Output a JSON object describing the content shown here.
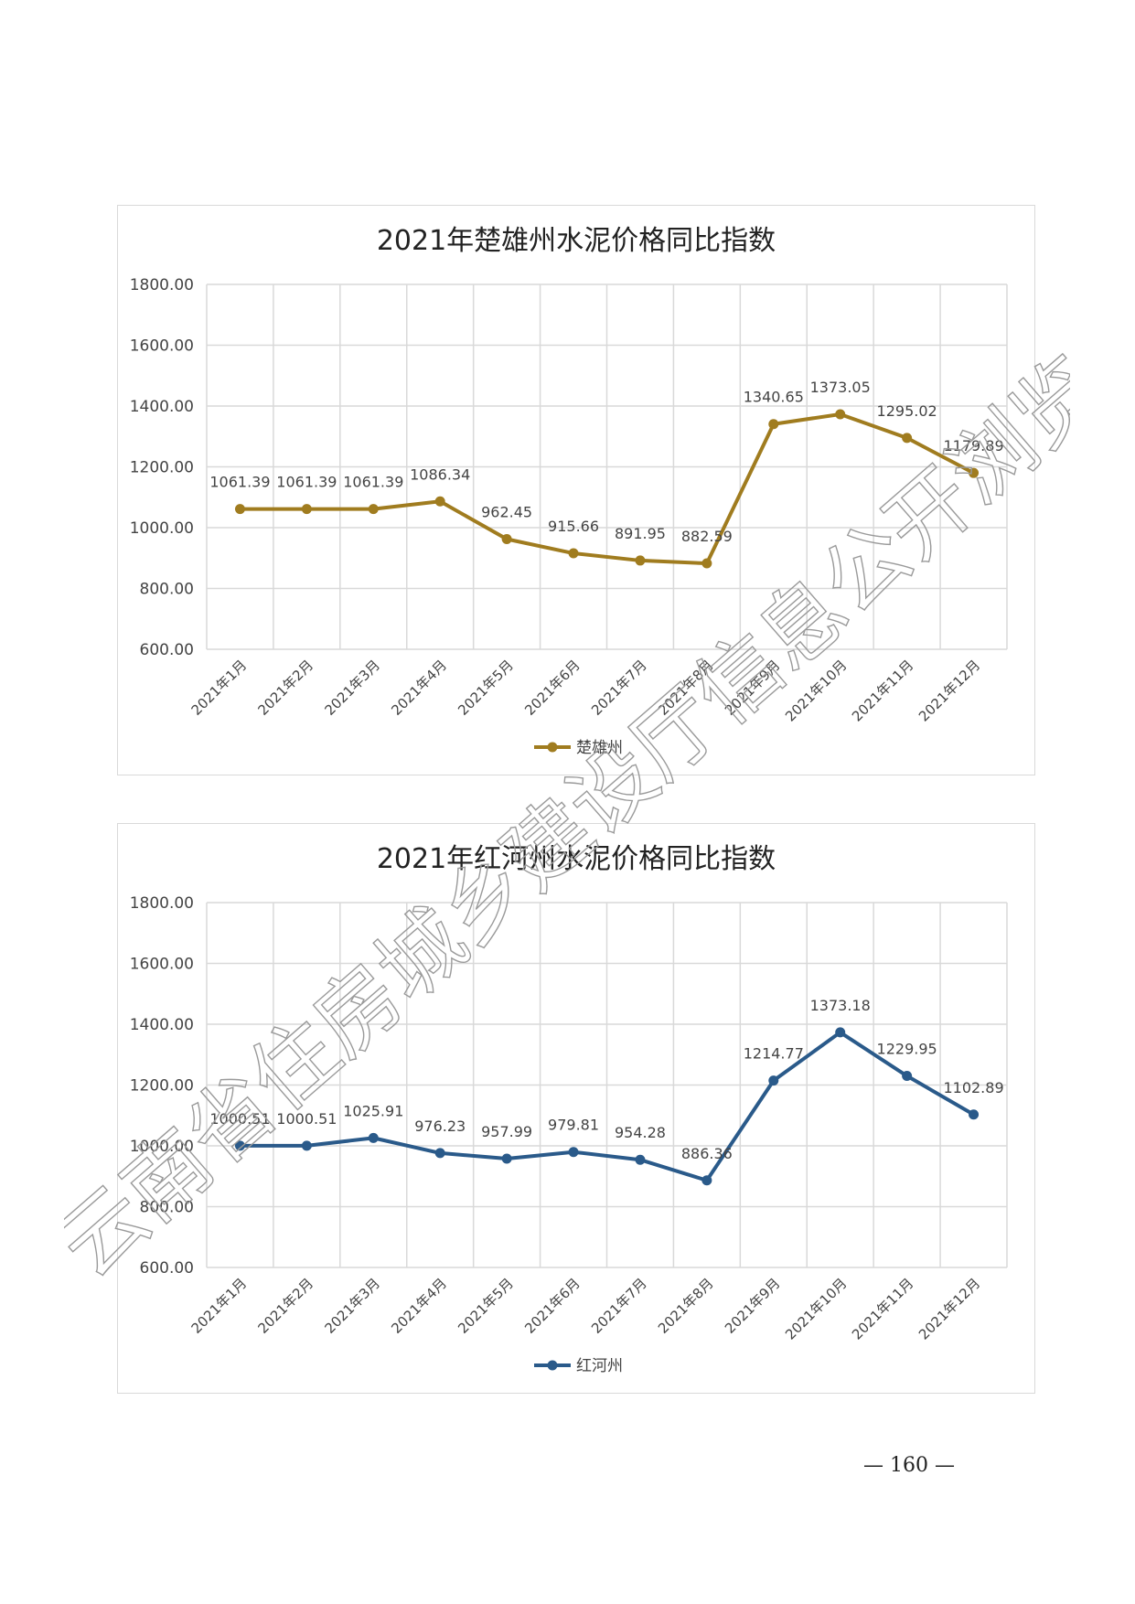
{
  "chart_data": [
    {
      "type": "line",
      "title": "2021年楚雄州水泥价格同比指数",
      "categories": [
        "2021年1月",
        "2021年2月",
        "2021年3月",
        "2021年4月",
        "2021年5月",
        "2021年6月",
        "2021年7月",
        "2021年8月",
        "2021年9月",
        "2021年10月",
        "2021年11月",
        "2021年12月"
      ],
      "series": [
        {
          "name": "楚雄州",
          "color": "#a07c1f",
          "values": [
            1061.39,
            1061.39,
            1061.39,
            1086.34,
            962.45,
            915.66,
            891.95,
            882.59,
            1340.65,
            1373.05,
            1295.02,
            1179.89
          ],
          "value_labels": [
            "1061.39",
            "1061.39",
            "1061.39",
            "1086.34",
            "962.45",
            "915.66",
            "891.95",
            "882.59",
            "1340.65",
            "1373.05",
            "1295.02",
            "1179.89"
          ]
        }
      ],
      "ylim": [
        600,
        1800
      ],
      "yticks": [
        "600.00",
        "800.00",
        "1000.00",
        "1200.00",
        "1400.00",
        "1600.00",
        "1800.00"
      ],
      "grid": true,
      "legend": "bottom"
    },
    {
      "type": "line",
      "title": "2021年红河州水泥价格同比指数",
      "categories": [
        "2021年1月",
        "2021年2月",
        "2021年3月",
        "2021年4月",
        "2021年5月",
        "2021年6月",
        "2021年7月",
        "2021年8月",
        "2021年9月",
        "2021年10月",
        "2021年11月",
        "2021年12月"
      ],
      "series": [
        {
          "name": "红河州",
          "color": "#2a5a8a",
          "values": [
            1000.51,
            1000.51,
            1025.91,
            976.23,
            957.99,
            979.81,
            954.28,
            886.36,
            1214.77,
            1373.18,
            1229.95,
            1102.89
          ],
          "value_labels": [
            "1000.51",
            "1000.51",
            "1025.91",
            "976.23",
            "957.99",
            "979.81",
            "954.28",
            "886.36",
            "1214.77",
            "1373.18",
            "1229.95",
            "1102.89"
          ]
        }
      ],
      "ylim": [
        600,
        1800
      ],
      "yticks": [
        "600.00",
        "800.00",
        "1000.00",
        "1200.00",
        "1400.00",
        "1600.00",
        "1800.00"
      ],
      "grid": true,
      "legend": "bottom"
    }
  ],
  "page": {
    "number": "— 160 —",
    "watermark": "云南省住房城乡建设厅信息公开浏览专用"
  }
}
